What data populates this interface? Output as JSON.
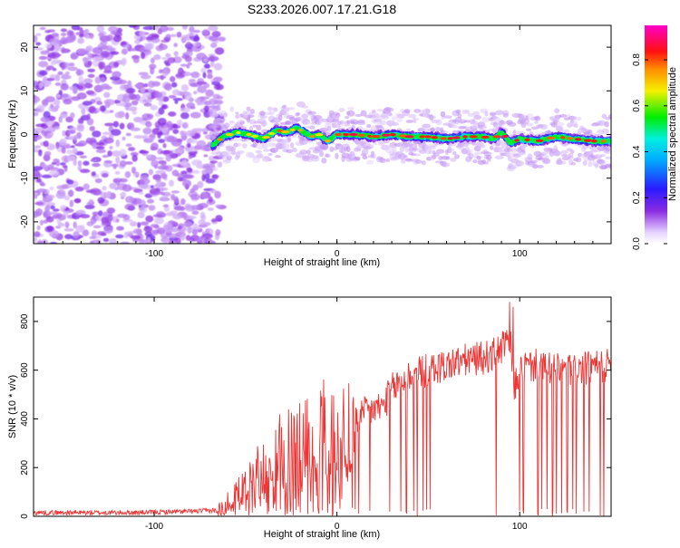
{
  "figure_title": "S233.2026.007.17.21.G18",
  "colorbar": {
    "label": "Normalized spectral amplitude",
    "ticks": [
      0.0,
      0.2,
      0.4,
      0.6,
      0.8
    ],
    "tick_labels": [
      "0.0",
      "0.2",
      "0.4",
      "0.6",
      "0.8"
    ],
    "range": [
      0,
      0.95
    ]
  },
  "chart_data": [
    {
      "type": "heatmap",
      "title": "S233.2026.007.17.21.G18",
      "xlabel": "Height of straight line (km)",
      "ylabel": "Frequency (Hz)",
      "xlim": [
        -166,
        150
      ],
      "ylim": [
        -25,
        25
      ],
      "xticks": [
        -100,
        0,
        100
      ],
      "xtick_labels": [
        "-100",
        "0",
        "100"
      ],
      "yticks": [
        -20,
        -10,
        0,
        10,
        20
      ],
      "ytick_labels": [
        "-20",
        "-10",
        "0",
        "10",
        "20"
      ],
      "noise_region_x": [
        -166,
        -65
      ],
      "signal_start_x": -68,
      "ridge": {
        "x": [
          -68,
          -62,
          -55,
          -48,
          -40,
          -33,
          -27,
          -22,
          -18,
          -14,
          -10,
          -5,
          0,
          10,
          20,
          30,
          40,
          50,
          60,
          70,
          80,
          86,
          90,
          95,
          100,
          110,
          120,
          130,
          140,
          150
        ],
        "freq_hz": [
          -2.5,
          -0.5,
          0.5,
          0,
          -1,
          1,
          0.5,
          1.5,
          0.5,
          -0.5,
          0,
          -1.5,
          0,
          0,
          -0.5,
          0,
          -0.5,
          -0.5,
          -1,
          -0.5,
          -0.5,
          -1,
          0.5,
          -2,
          -1,
          -1.5,
          -0.5,
          -1,
          -1.5,
          -1.5
        ]
      },
      "colormap": "rainbow (purple-blue-cyan-green-yellow-red-magenta)"
    },
    {
      "type": "line",
      "xlabel": "Height of straight line (km)",
      "ylabel": "SNR (10 * v/v)",
      "xlim": [
        -166,
        150
      ],
      "ylim": [
        0,
        900
      ],
      "xticks": [
        -100,
        0,
        100
      ],
      "xtick_labels": [
        "-100",
        "0",
        "100"
      ],
      "yticks": [
        0,
        200,
        400,
        600,
        800
      ],
      "ytick_labels": [
        "0",
        "200",
        "400",
        "600",
        "800"
      ],
      "color": "#ee3333",
      "series": [
        {
          "name": "SNR",
          "x": [
            -166,
            -140,
            -110,
            -80,
            -66,
            -60,
            -55,
            -50,
            -45,
            -40,
            -35,
            -30,
            -25,
            -20,
            -15,
            -10,
            -5,
            0,
            5,
            10,
            15,
            20,
            25,
            30,
            40,
            50,
            60,
            70,
            80,
            85,
            90,
            93,
            95,
            97,
            100,
            110,
            120,
            130,
            140,
            150
          ],
          "y": [
            15,
            15,
            15,
            20,
            25,
            60,
            100,
            140,
            180,
            200,
            240,
            300,
            300,
            300,
            330,
            380,
            370,
            360,
            370,
            390,
            420,
            440,
            450,
            520,
            580,
            600,
            620,
            640,
            650,
            660,
            690,
            710,
            700,
            520,
            610,
            620,
            600,
            600,
            610,
            620
          ]
        }
      ],
      "dropouts_x": [
        -38,
        -31,
        -27,
        -24,
        -20,
        -16,
        -13,
        -10,
        -8,
        -5,
        10,
        12,
        18,
        29,
        35,
        38,
        42,
        44,
        47,
        49,
        51,
        87,
        100,
        102,
        110,
        112,
        115,
        118,
        120,
        123,
        126,
        129,
        131,
        135,
        138,
        144,
        146
      ]
    }
  ]
}
